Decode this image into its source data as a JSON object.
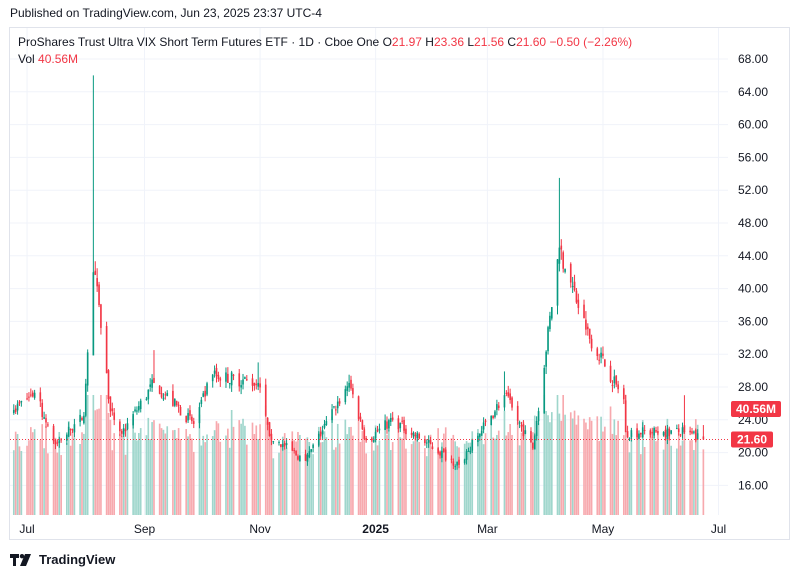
{
  "header": {
    "published": "Published on TradingView.com, Jun 23, 2025 23:37 UTC-4"
  },
  "legend": {
    "symbol": "ProShares Trust Ultra VIX Short Term Futures ETF · 1D · Cboe One",
    "o_label": "O",
    "o_value": "21.97",
    "h_label": "H",
    "h_value": "23.36",
    "l_label": "L",
    "l_value": "21.56",
    "c_label": "C",
    "c_value": "21.60",
    "change": "−0.50 (−2.26%)",
    "vol_label": "Vol",
    "vol_value": "40.56M"
  },
  "footer": {
    "brand": "TradingView"
  },
  "colors": {
    "up": "#089981",
    "down": "#f23645",
    "up_vol": "#9fd6cc",
    "down_vol": "#f7a9ae",
    "grid": "#f0f3fa",
    "text": "#131722"
  },
  "chart_data": {
    "type": "candlestick",
    "x_ticks": [
      "Jul",
      "Sep",
      "Nov",
      "2025",
      "Mar",
      "May",
      "Jul"
    ],
    "y_ticks": [
      "68.00",
      "64.00",
      "60.00",
      "56.00",
      "52.00",
      "48.00",
      "44.00",
      "40.00",
      "36.00",
      "32.00",
      "28.00",
      "24.00",
      "20.00",
      "16.00"
    ],
    "ylim": [
      12,
      69.5
    ],
    "last_price": "21.60",
    "last_volume": "40.56M",
    "key_points": [
      {
        "date": "2024-06-24",
        "close": 25.2
      },
      {
        "date": "2024-07-05",
        "close": 27.3
      },
      {
        "date": "2024-07-16",
        "close": 21.0
      },
      {
        "date": "2024-07-31",
        "close": 24.5
      },
      {
        "date": "2024-08-05",
        "close": 42.0,
        "high": 66.0
      },
      {
        "date": "2024-08-08",
        "close": 38.0
      },
      {
        "date": "2024-08-14",
        "close": 25.0
      },
      {
        "date": "2024-08-20",
        "close": 22.3
      },
      {
        "date": "2024-09-06",
        "close": 28.5,
        "high": 32.5
      },
      {
        "date": "2024-09-27",
        "close": 23.5
      },
      {
        "date": "2024-10-07",
        "close": 29.5
      },
      {
        "date": "2024-10-31",
        "close": 28.5,
        "high": 31.0
      },
      {
        "date": "2024-11-06",
        "close": 22.0
      },
      {
        "date": "2024-11-25",
        "close": 19.0
      },
      {
        "date": "2024-12-18",
        "close": 28.5,
        "high": 29.5
      },
      {
        "date": "2024-12-27",
        "close": 21.5
      },
      {
        "date": "2025-01-10",
        "close": 24.0
      },
      {
        "date": "2025-02-14",
        "close": 18.5
      },
      {
        "date": "2025-03-10",
        "close": 27.0,
        "high": 29.9
      },
      {
        "date": "2025-03-25",
        "close": 20.5
      },
      {
        "date": "2025-04-08",
        "close": 45.0,
        "high": 53.5
      },
      {
        "date": "2025-04-22",
        "close": 35.0
      },
      {
        "date": "2025-05-12",
        "close": 26.5
      },
      {
        "date": "2025-05-13",
        "close": 22.5
      },
      {
        "date": "2025-06-02",
        "close": 22.5
      },
      {
        "date": "2025-06-13",
        "close": 22.5,
        "high": 27.0
      },
      {
        "date": "2025-06-23",
        "close": 21.6,
        "high": 23.36,
        "low": 21.56,
        "open": 21.97
      }
    ]
  }
}
